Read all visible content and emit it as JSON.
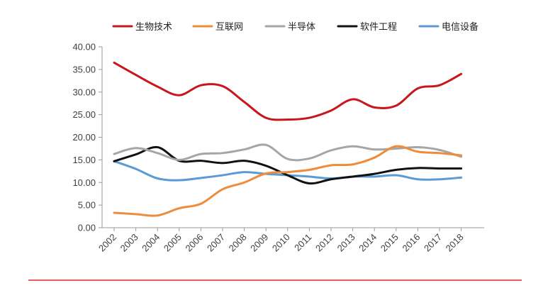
{
  "chart_data": {
    "type": "line",
    "title": "",
    "xlabel": "",
    "ylabel": "",
    "ylim": [
      0,
      40
    ],
    "yticks": [
      "0.00",
      "5.00",
      "10.00",
      "15.00",
      "20.00",
      "25.00",
      "30.00",
      "35.00",
      "40.00"
    ],
    "x": [
      "2002",
      "2003",
      "2004",
      "2005",
      "2006",
      "2007",
      "2008",
      "2009",
      "2010",
      "2011",
      "2012",
      "2013",
      "2014",
      "2015",
      "2016",
      "2017",
      "2018"
    ],
    "legend_position": "top",
    "grid": false,
    "series": [
      {
        "name": "生物技术",
        "color": "#c8161d",
        "values": [
          36.5,
          33.8,
          31.2,
          29.3,
          31.5,
          31.3,
          27.8,
          24.3,
          23.9,
          24.3,
          25.9,
          28.4,
          26.6,
          27.0,
          30.8,
          31.5,
          34.0
        ]
      },
      {
        "name": "互联网",
        "color": "#ed8c3c",
        "values": [
          3.3,
          3.0,
          2.7,
          4.3,
          5.3,
          8.5,
          10.0,
          12.0,
          12.3,
          12.8,
          13.8,
          14.0,
          15.5,
          18.0,
          16.8,
          16.5,
          16.0
        ]
      },
      {
        "name": "半导体",
        "color": "#a6a6a6",
        "values": [
          16.3,
          17.6,
          16.5,
          15.0,
          16.3,
          16.5,
          17.3,
          18.3,
          15.2,
          15.3,
          17.1,
          18.0,
          17.3,
          17.5,
          17.8,
          17.2,
          15.7
        ]
      },
      {
        "name": "软件工程",
        "color": "#111111",
        "values": [
          14.7,
          16.2,
          17.8,
          14.8,
          14.8,
          14.3,
          14.8,
          13.7,
          11.6,
          9.8,
          10.7,
          11.3,
          11.9,
          12.8,
          13.2,
          13.1,
          13.1
        ]
      },
      {
        "name": "电信设备",
        "color": "#5b9bd5",
        "values": [
          14.7,
          13.0,
          10.9,
          10.5,
          11.0,
          11.6,
          12.3,
          11.9,
          11.6,
          11.3,
          10.9,
          11.3,
          11.3,
          11.6,
          10.7,
          10.7,
          11.1
        ]
      }
    ]
  }
}
